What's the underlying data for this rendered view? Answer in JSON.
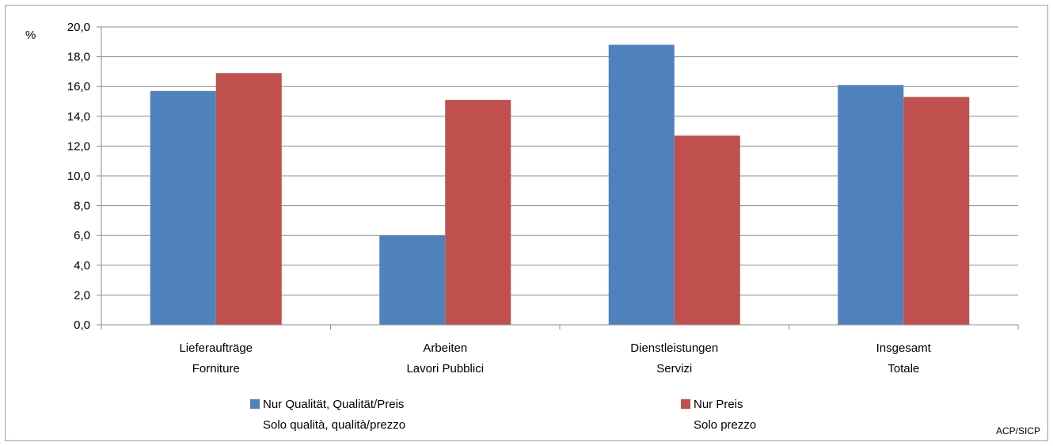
{
  "chart_data": {
    "type": "bar",
    "ylabel": "%",
    "ylim": [
      0,
      20
    ],
    "ytick_step": 2,
    "ytick_labels": [
      "0,0",
      "2,0",
      "4,0",
      "6,0",
      "8,0",
      "10,0",
      "12,0",
      "14,0",
      "16,0",
      "18,0",
      "20,0"
    ],
    "grid": true,
    "legend_position": "bottom",
    "categories": [
      [
        "Lieferaufträge",
        "Forniture"
      ],
      [
        "Arbeiten",
        "Lavori Pubblici"
      ],
      [
        "Dienstleistungen",
        "Servizi"
      ],
      [
        "Insgesamt",
        "Totale"
      ]
    ],
    "series": [
      {
        "name": [
          "Nur Qualität, Qualität/Preis",
          "Solo qualità, qualità/prezzo"
        ],
        "color": "#4f81bd",
        "values": [
          15.7,
          6.0,
          18.8,
          16.1
        ]
      },
      {
        "name": [
          "Nur Preis",
          "Solo prezzo"
        ],
        "color": "#c0504d",
        "values": [
          16.9,
          15.1,
          12.7,
          15.3
        ]
      }
    ],
    "source": "ACP/SICP"
  }
}
